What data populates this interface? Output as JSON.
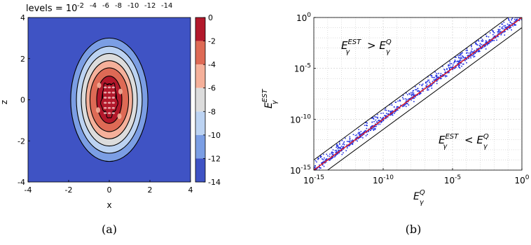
{
  "chart_data": [
    {
      "panel": "(a)",
      "type": "heatmap",
      "title": "levels = 10",
      "title_exponents": [
        "-2",
        "-4",
        "-6",
        "-8",
        "-10",
        "-12",
        "-14"
      ],
      "xlabel": "x",
      "ylabel": "z",
      "xlim": [
        -4,
        4
      ],
      "ylim": [
        -4,
        4
      ],
      "xticks": [
        "-4",
        "-2",
        "0",
        "2",
        "4"
      ],
      "yticks": [
        "4",
        "2",
        "0",
        "-2",
        "-4"
      ],
      "colorbar": {
        "ticks": [
          "0",
          "-2",
          "-4",
          "-6",
          "-8",
          "-10",
          "-12",
          "-14"
        ],
        "bands": [
          {
            "from": 0,
            "to": -2,
            "color": "#b2182b"
          },
          {
            "from": -2,
            "to": -4,
            "color": "#de6a55"
          },
          {
            "from": -4,
            "to": -6,
            "color": "#f5b09a"
          },
          {
            "from": -6,
            "to": -8,
            "color": "#dcdcdc"
          },
          {
            "from": -8,
            "to": -10,
            "color": "#bcd3f2"
          },
          {
            "from": -10,
            "to": -12,
            "color": "#7b9ee4"
          },
          {
            "from": -12,
            "to": -14,
            "color": "#3f53c4"
          }
        ]
      },
      "contour_levels": [
        {
          "level": -14,
          "a": 1.9,
          "b": 3.0
        },
        {
          "level": -12,
          "a": 1.62,
          "b": 2.6
        },
        {
          "level": -10,
          "a": 1.38,
          "b": 2.25
        },
        {
          "level": -8,
          "a": 1.15,
          "b": 1.9
        },
        {
          "level": -6,
          "a": 0.95,
          "b": 1.55
        },
        {
          "level": -4,
          "a": 0.62,
          "b": 1.15
        },
        {
          "level": -2,
          "a": 0.36,
          "b": 0.78
        }
      ]
    },
    {
      "panel": "(b)",
      "type": "scatter",
      "xlabel": "E",
      "xlabel_sub": "γ",
      "xlabel_sup": "Q",
      "ylabel": "E",
      "ylabel_sub": "γ",
      "ylabel_sup": "EST",
      "xscale": "log",
      "yscale": "log",
      "xlim": [
        1e-15,
        1
      ],
      "ylim": [
        1e-15,
        1
      ],
      "grid": true,
      "xticks": [
        {
          "base": "10",
          "exp": "-15"
        },
        {
          "base": "10",
          "exp": "-10"
        },
        {
          "base": "10",
          "exp": "-5"
        },
        {
          "base": "10",
          "exp": "0"
        }
      ],
      "yticks": [
        {
          "base": "10",
          "exp": "-15"
        },
        {
          "base": "10",
          "exp": "-10"
        },
        {
          "base": "10",
          "exp": "-5"
        },
        {
          "base": "10",
          "exp": "0"
        }
      ],
      "annotations": [
        {
          "text": "E",
          "sub": "γ",
          "sup": "EST",
          "op": ">",
          "text2": "E",
          "sub2": "γ",
          "sup2": "Q",
          "position": "upper-left"
        },
        {
          "text": "E",
          "sub": "γ",
          "sup": "EST",
          "op": "<",
          "text2": "E",
          "sub2": "γ",
          "sup2": "Q",
          "position": "lower-right"
        }
      ],
      "reference_lines": [
        {
          "name": "y = x",
          "color": "#e41a1c",
          "offset_decades": 0
        },
        {
          "name": "upper bound",
          "color": "#000000",
          "offset_decades": 1
        },
        {
          "name": "lower bound",
          "color": "#000000",
          "offset_decades": -1
        }
      ],
      "series": [
        {
          "color": "#1f2ee0",
          "points_log10": [
            [
              -15.0,
              -14.7
            ],
            [
              -14.8,
              -14.2
            ],
            [
              -14.6,
              -14.5
            ],
            [
              -14.4,
              -13.9
            ],
            [
              -14.2,
              -14.3
            ],
            [
              -14.0,
              -13.6
            ],
            [
              -13.8,
              -13.9
            ],
            [
              -13.6,
              -13.3
            ],
            [
              -13.4,
              -13.5
            ],
            [
              -13.2,
              -12.8
            ],
            [
              -13.0,
              -13.0
            ],
            [
              -12.8,
              -12.5
            ],
            [
              -12.6,
              -12.7
            ],
            [
              -12.4,
              -11.9
            ],
            [
              -12.2,
              -12.2
            ],
            [
              -12.0,
              -11.6
            ],
            [
              -11.8,
              -11.9
            ],
            [
              -11.6,
              -11.2
            ],
            [
              -11.4,
              -11.5
            ],
            [
              -11.2,
              -10.6
            ],
            [
              -11.0,
              -11.0
            ],
            [
              -10.8,
              -10.3
            ],
            [
              -10.6,
              -10.6
            ],
            [
              -10.4,
              -9.9
            ],
            [
              -10.2,
              -10.2
            ],
            [
              -10.0,
              -9.4
            ],
            [
              -9.8,
              -9.8
            ],
            [
              -9.6,
              -9.2
            ],
            [
              -9.4,
              -9.4
            ],
            [
              -9.2,
              -8.8
            ],
            [
              -9.0,
              -9.0
            ],
            [
              -8.8,
              -8.2
            ],
            [
              -8.6,
              -8.6
            ],
            [
              -8.4,
              -8.0
            ],
            [
              -8.2,
              -8.2
            ],
            [
              -8.0,
              -7.4
            ],
            [
              -7.8,
              -7.8
            ],
            [
              -7.6,
              -7.1
            ],
            [
              -7.4,
              -7.4
            ],
            [
              -7.2,
              -6.7
            ],
            [
              -7.0,
              -7.0
            ],
            [
              -6.8,
              -6.3
            ],
            [
              -6.6,
              -6.6
            ],
            [
              -6.4,
              -5.9
            ],
            [
              -6.2,
              -6.2
            ],
            [
              -6.0,
              -5.5
            ],
            [
              -5.8,
              -5.8
            ],
            [
              -5.6,
              -5.1
            ],
            [
              -5.4,
              -5.4
            ],
            [
              -5.2,
              -4.7
            ],
            [
              -5.0,
              -5.0
            ],
            [
              -4.8,
              -4.3
            ],
            [
              -4.6,
              -4.6
            ],
            [
              -4.4,
              -3.9
            ],
            [
              -4.2,
              -4.2
            ],
            [
              -4.0,
              -3.5
            ],
            [
              -3.8,
              -3.8
            ],
            [
              -3.6,
              -3.1
            ],
            [
              -3.4,
              -3.4
            ],
            [
              -3.2,
              -2.7
            ],
            [
              -3.0,
              -3.0
            ],
            [
              -2.8,
              -2.3
            ],
            [
              -2.6,
              -2.6
            ],
            [
              -2.4,
              -1.9
            ],
            [
              -2.2,
              -2.2
            ],
            [
              -2.0,
              -1.5
            ],
            [
              -1.8,
              -1.8
            ],
            [
              -1.6,
              -1.2
            ],
            [
              -1.4,
              -1.4
            ],
            [
              -1.2,
              -0.8
            ],
            [
              -1.0,
              -1.0
            ],
            [
              -0.8,
              -0.5
            ],
            [
              -0.6,
              -0.6
            ],
            [
              -0.4,
              -0.2
            ],
            [
              -0.2,
              -0.2
            ],
            [
              -14.5,
              -14.8
            ],
            [
              -13.5,
              -13.7
            ],
            [
              -12.5,
              -12.6
            ],
            [
              -11.5,
              -11.6
            ],
            [
              -10.5,
              -10.7
            ],
            [
              -9.5,
              -9.6
            ],
            [
              -8.5,
              -8.7
            ],
            [
              -7.5,
              -7.6
            ],
            [
              -6.5,
              -6.7
            ],
            [
              -5.5,
              -5.7
            ],
            [
              -4.5,
              -4.7
            ],
            [
              -3.5,
              -3.7
            ],
            [
              -2.5,
              -2.7
            ],
            [
              -1.5,
              -1.7
            ],
            [
              -0.5,
              -0.7
            ]
          ]
        }
      ]
    }
  ],
  "captions": {
    "a": "(a)",
    "b": "(b)"
  }
}
